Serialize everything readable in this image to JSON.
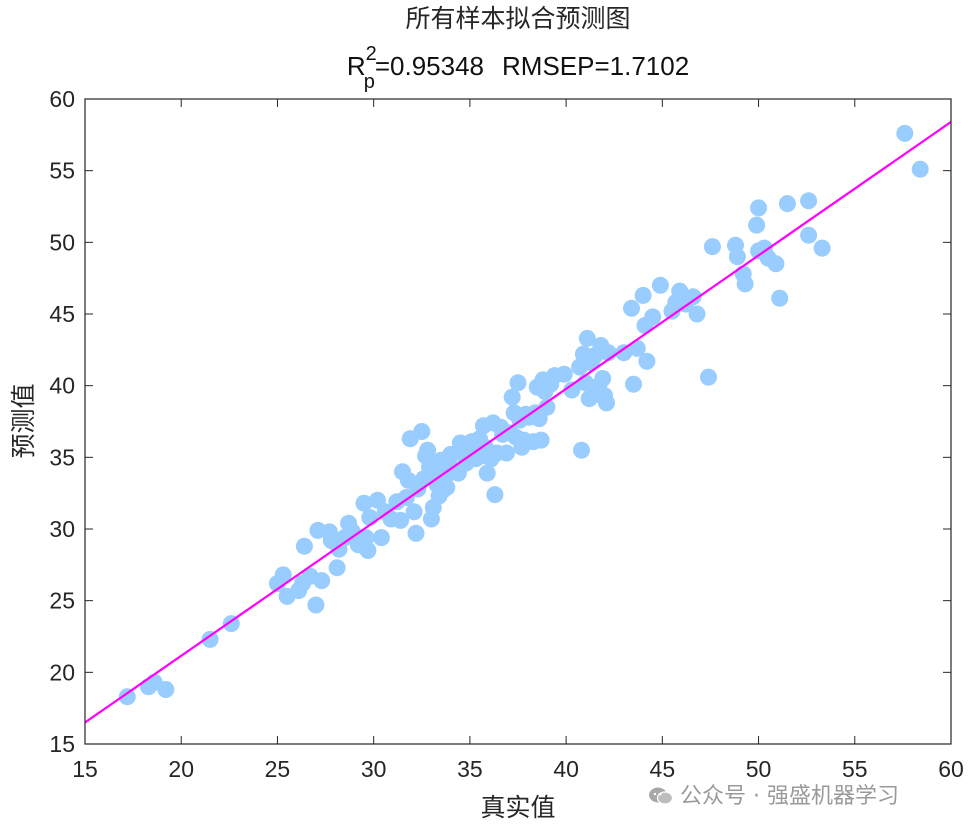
{
  "chart_data": {
    "type": "scatter",
    "title": "所有样本拟合预测图",
    "subtitle": {
      "r_symbol": "R",
      "r_sup": "2",
      "r_sub": "p",
      "r_value": "=0.95348",
      "rmsep": "RMSEP=1.7102"
    },
    "xlabel": "真实值",
    "ylabel": "预测值",
    "xlim": [
      15,
      60
    ],
    "ylim": [
      15,
      60
    ],
    "xticks": [
      "15",
      "20",
      "25",
      "30",
      "35",
      "40",
      "45",
      "50",
      "55",
      "60"
    ],
    "yticks": [
      "15",
      "20",
      "25",
      "30",
      "35",
      "40",
      "45",
      "50",
      "55",
      "60"
    ],
    "grid": false,
    "legend": "none",
    "point_color": "#99CCFF",
    "fit_line": {
      "color": "#FF00FF",
      "from": [
        15,
        16.5
      ],
      "to": [
        60,
        58.4
      ]
    },
    "points": [
      [
        17.2,
        18.3
      ],
      [
        18.3,
        19.0
      ],
      [
        18.6,
        19.3
      ],
      [
        19.2,
        18.8
      ],
      [
        21.5,
        22.3
      ],
      [
        22.6,
        23.4
      ],
      [
        25.0,
        26.2
      ],
      [
        25.3,
        26.8
      ],
      [
        25.5,
        25.3
      ],
      [
        26.1,
        25.7
      ],
      [
        26.3,
        26.2
      ],
      [
        26.4,
        28.8
      ],
      [
        26.7,
        26.7
      ],
      [
        27.0,
        24.7
      ],
      [
        27.1,
        29.9
      ],
      [
        27.3,
        26.4
      ],
      [
        27.7,
        29.8
      ],
      [
        27.8,
        29.2
      ],
      [
        28.1,
        27.3
      ],
      [
        28.2,
        28.6
      ],
      [
        28.5,
        29.4
      ],
      [
        28.7,
        30.4
      ],
      [
        28.9,
        29.8
      ],
      [
        29.2,
        28.9
      ],
      [
        29.5,
        31.8
      ],
      [
        29.6,
        29.4
      ],
      [
        29.7,
        28.5
      ],
      [
        29.8,
        30.8
      ],
      [
        30.2,
        32.0
      ],
      [
        30.4,
        29.4
      ],
      [
        30.6,
        31.2
      ],
      [
        30.9,
        30.7
      ],
      [
        31.2,
        31.9
      ],
      [
        31.4,
        30.6
      ],
      [
        31.5,
        34.0
      ],
      [
        31.7,
        32.2
      ],
      [
        31.8,
        33.4
      ],
      [
        31.9,
        36.3
      ],
      [
        32.1,
        31.2
      ],
      [
        32.2,
        29.7
      ],
      [
        32.3,
        32.8
      ],
      [
        32.5,
        36.8
      ],
      [
        32.6,
        33.5
      ],
      [
        32.7,
        35.1
      ],
      [
        32.8,
        35.5
      ],
      [
        32.9,
        34.3
      ],
      [
        33.0,
        30.7
      ],
      [
        33.1,
        31.5
      ],
      [
        33.2,
        34.0
      ],
      [
        33.3,
        33.1
      ],
      [
        33.4,
        32.3
      ],
      [
        33.5,
        34.8
      ],
      [
        33.6,
        32.7
      ],
      [
        33.7,
        33.6
      ],
      [
        33.8,
        32.9
      ],
      [
        33.9,
        34.6
      ],
      [
        34.0,
        35.2
      ],
      [
        34.2,
        34.0
      ],
      [
        34.4,
        33.9
      ],
      [
        34.5,
        36.0
      ],
      [
        34.6,
        35.3
      ],
      [
        34.8,
        34.6
      ],
      [
        35.0,
        35.7
      ],
      [
        35.1,
        36.1
      ],
      [
        35.3,
        34.9
      ],
      [
        35.5,
        36.3
      ],
      [
        35.6,
        35.1
      ],
      [
        35.7,
        37.2
      ],
      [
        35.8,
        35.7
      ],
      [
        35.9,
        33.9
      ],
      [
        36.1,
        34.9
      ],
      [
        36.2,
        37.4
      ],
      [
        36.3,
        32.4
      ],
      [
        36.4,
        35.3
      ],
      [
        36.6,
        37.1
      ],
      [
        36.7,
        36.6
      ],
      [
        36.9,
        35.3
      ],
      [
        37.1,
        36.7
      ],
      [
        37.2,
        39.2
      ],
      [
        37.3,
        38.1
      ],
      [
        37.4,
        36.4
      ],
      [
        37.5,
        40.2
      ],
      [
        37.6,
        37.6
      ],
      [
        37.7,
        35.7
      ],
      [
        37.8,
        36.2
      ],
      [
        37.9,
        38.0
      ],
      [
        38.1,
        37.8
      ],
      [
        38.3,
        36.1
      ],
      [
        38.4,
        38.1
      ],
      [
        38.5,
        39.9
      ],
      [
        38.6,
        37.7
      ],
      [
        38.7,
        36.2
      ],
      [
        38.8,
        40.4
      ],
      [
        38.9,
        39.6
      ],
      [
        39.0,
        38.5
      ],
      [
        39.1,
        40.3
      ],
      [
        39.2,
        40.1
      ],
      [
        39.4,
        40.7
      ],
      [
        39.9,
        40.8
      ],
      [
        40.3,
        39.7
      ],
      [
        40.7,
        41.3
      ],
      [
        40.8,
        35.5
      ],
      [
        40.9,
        42.2
      ],
      [
        41.0,
        40.2
      ],
      [
        41.1,
        43.3
      ],
      [
        41.2,
        39.1
      ],
      [
        41.3,
        41.6
      ],
      [
        41.5,
        42.1
      ],
      [
        41.6,
        39.4
      ],
      [
        41.7,
        40.0
      ],
      [
        41.8,
        42.8
      ],
      [
        41.9,
        40.5
      ],
      [
        42.0,
        39.3
      ],
      [
        42.1,
        38.8
      ],
      [
        42.2,
        42.3
      ],
      [
        43.0,
        42.3
      ],
      [
        43.4,
        45.4
      ],
      [
        43.5,
        40.1
      ],
      [
        43.7,
        42.6
      ],
      [
        44.0,
        46.3
      ],
      [
        44.1,
        44.2
      ],
      [
        44.2,
        41.7
      ],
      [
        44.5,
        44.8
      ],
      [
        44.9,
        47.0
      ],
      [
        45.5,
        45.2
      ],
      [
        45.7,
        45.8
      ],
      [
        45.9,
        46.6
      ],
      [
        46.2,
        45.7
      ],
      [
        46.6,
        46.2
      ],
      [
        46.8,
        45.0
      ],
      [
        47.4,
        40.6
      ],
      [
        47.6,
        49.7
      ],
      [
        48.8,
        49.8
      ],
      [
        48.9,
        49.0
      ],
      [
        49.2,
        47.8
      ],
      [
        49.3,
        47.1
      ],
      [
        49.9,
        51.2
      ],
      [
        50.0,
        52.4
      ],
      [
        50.0,
        49.4
      ],
      [
        50.3,
        49.6
      ],
      [
        50.5,
        48.9
      ],
      [
        50.9,
        48.5
      ],
      [
        51.1,
        46.1
      ],
      [
        51.5,
        52.7
      ],
      [
        52.6,
        52.9
      ],
      [
        52.6,
        50.5
      ],
      [
        53.3,
        49.6
      ],
      [
        57.6,
        57.6
      ],
      [
        58.4,
        55.1
      ]
    ]
  },
  "watermark": {
    "icon": "wechat-icon",
    "text": "公众号 · 强盛机器学习"
  }
}
